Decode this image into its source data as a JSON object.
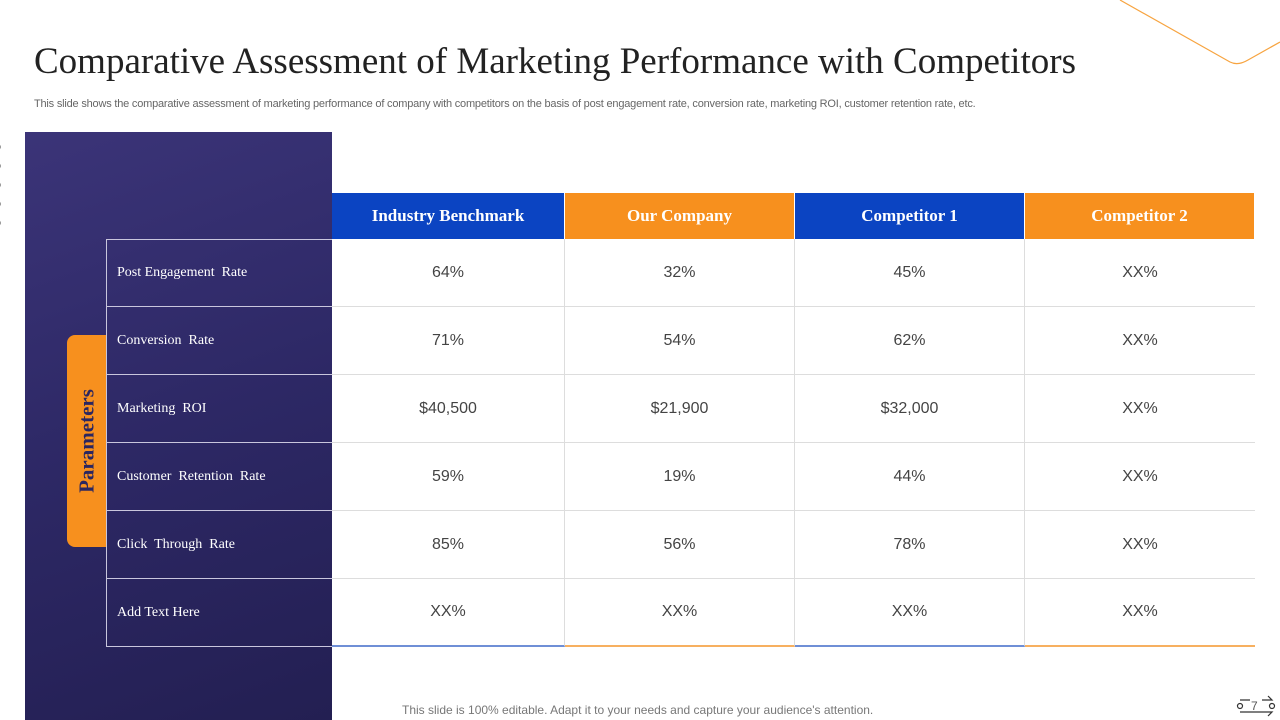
{
  "header": {
    "title": "Comparative Assessment of Marketing Performance with Competitors",
    "subtitle": "This slide shows the comparative assessment of marketing performance of company with competitors on the basis of post engagement rate, conversion rate, marketing ROI, customer retention rate, etc."
  },
  "sidebar_label": "Parameters",
  "table": {
    "columns": [
      "Industry Benchmark",
      "Our Company",
      "Competitor 1",
      "Competitor 2"
    ],
    "rows": [
      [
        "Post Engagement  Rate",
        "64%",
        "32%",
        "45%",
        "XX%"
      ],
      [
        "Conversion  Rate",
        "71%",
        "54%",
        "62%",
        "XX%"
      ],
      [
        "Marketing  ROI",
        "$40,500",
        "$21,900",
        "$32,000",
        "XX%"
      ],
      [
        "Customer  Retention  Rate",
        "59%",
        "19%",
        "44%",
        "XX%"
      ],
      [
        "Click  Through  Rate",
        "85%",
        "56%",
        "78%",
        "XX%"
      ],
      [
        "Add Text Here",
        "XX%",
        "XX%",
        "XX%",
        "XX%"
      ]
    ]
  },
  "footer": {
    "note": "This slide is 100% editable. Adapt it to your needs and capture your audience's attention.",
    "page": "7"
  }
}
